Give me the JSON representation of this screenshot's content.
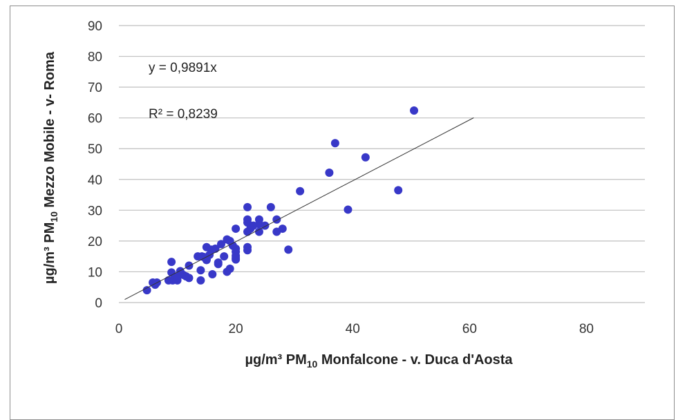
{
  "chart_data": {
    "type": "scatter",
    "xlabel": {
      "pre": "µg/m³ PM",
      "sub": "10",
      "post": " Monfalcone - v. Duca d'Aosta"
    },
    "ylabel": {
      "pre": "µg/m³ PM",
      "sub": "10",
      "post": " Mezzo Mobile - v- Roma"
    },
    "xlim": [
      0,
      90
    ],
    "ylim": [
      0,
      90
    ],
    "xticks": [
      0,
      20,
      40,
      60,
      80
    ],
    "yticks": [
      0,
      10,
      20,
      30,
      40,
      50,
      60,
      70,
      80,
      90
    ],
    "grid": "horizontal",
    "annotations": {
      "equation": "y = 0,9891x",
      "r2": "R² = 0,8239"
    },
    "trendline": {
      "slope": 0.9891,
      "x_start": 1,
      "x_end": 60.7,
      "color": "#333333"
    },
    "marker_color": "#3838c8",
    "series": [
      {
        "x": [
          4.8,
          5.8,
          6.2,
          6.5,
          8.5,
          9,
          9,
          9.2,
          9.5,
          10,
          10,
          10.5,
          11,
          11.5,
          12,
          12,
          13.5,
          14,
          14,
          14.2,
          14.5,
          15,
          15,
          15,
          15.5,
          15.8,
          16,
          16.5,
          17,
          17,
          17.5,
          18,
          18.5,
          18.5,
          19,
          19,
          19.5,
          20,
          20,
          20,
          20,
          20,
          20,
          22,
          22,
          22,
          22,
          22,
          22,
          22.5,
          23,
          24,
          24,
          24,
          25,
          26,
          27,
          27,
          28,
          29,
          31,
          36,
          37,
          39.2,
          42.2,
          47.8,
          50.5
        ],
        "y": [
          4,
          6.5,
          5.8,
          6.5,
          7.2,
          13.2,
          9.8,
          7.2,
          8,
          7.2,
          8.5,
          10.2,
          9,
          8.5,
          12,
          8,
          15,
          10.5,
          7.2,
          15,
          14.8,
          14,
          18,
          13.8,
          15.5,
          17.2,
          9.2,
          17.5,
          13,
          12.5,
          19,
          15,
          10,
          20.5,
          20,
          11,
          18.5,
          24,
          17.5,
          16.5,
          15.2,
          14,
          14.5,
          31,
          27,
          26,
          17,
          18,
          23,
          24,
          25,
          27,
          25.5,
          23,
          25,
          31,
          27,
          23,
          24,
          17.2,
          36.2,
          42.2,
          51.8,
          30.2,
          47.2,
          36.5,
          62.4
        ]
      }
    ]
  }
}
